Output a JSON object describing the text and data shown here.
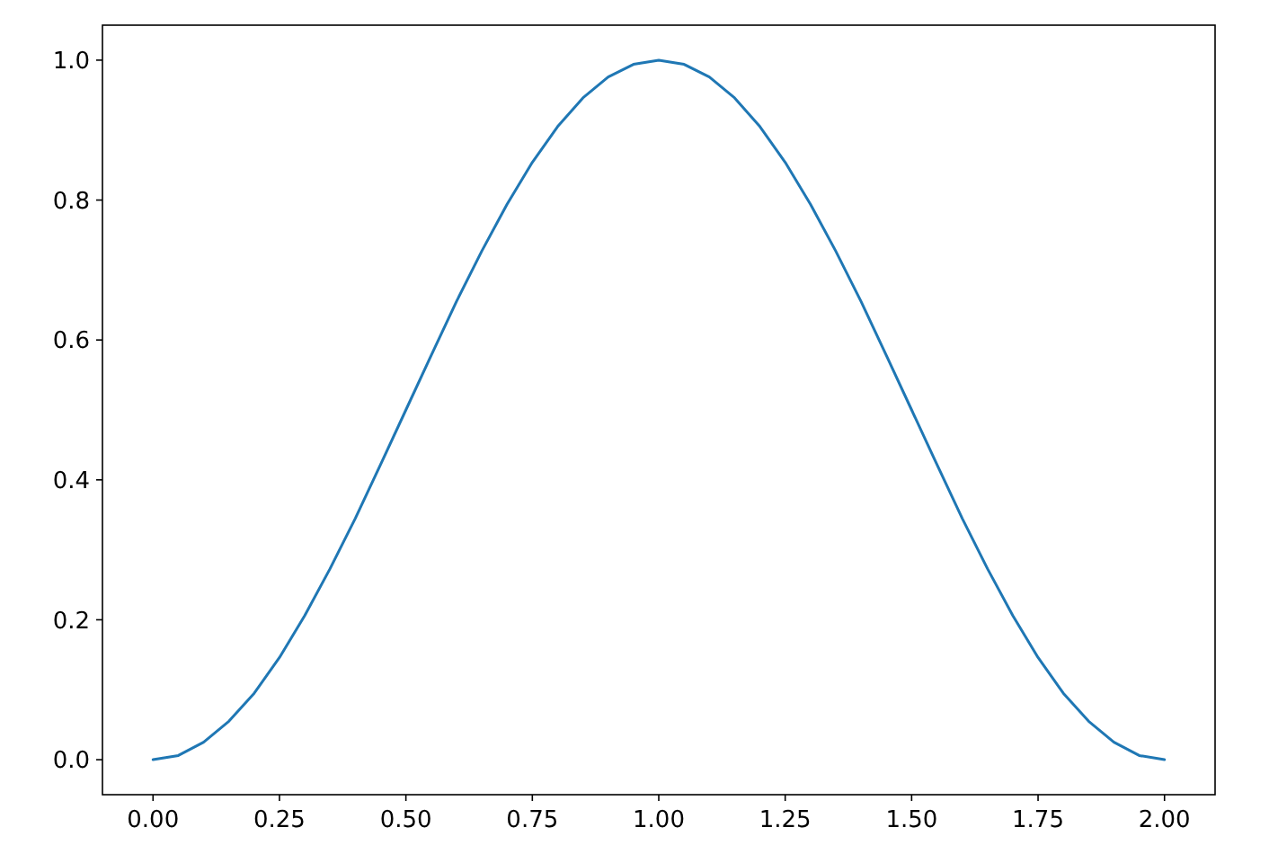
{
  "chart_data": {
    "type": "line",
    "x": [
      0,
      0.05,
      0.1,
      0.15,
      0.2,
      0.25,
      0.3,
      0.35,
      0.4,
      0.45,
      0.5,
      0.55,
      0.6,
      0.65,
      0.7,
      0.75,
      0.8,
      0.85,
      0.9,
      0.95,
      1,
      1.05,
      1.1,
      1.15,
      1.2,
      1.25,
      1.3,
      1.35,
      1.4,
      1.45,
      1.5,
      1.55,
      1.6,
      1.65,
      1.7,
      1.75,
      1.8,
      1.85,
      1.9,
      1.95,
      2
    ],
    "series": [
      {
        "color": "#1f77b4",
        "values": [
          0,
          0.006,
          0.025,
          0.055,
          0.095,
          0.146,
          0.206,
          0.273,
          0.345,
          0.422,
          0.5,
          0.578,
          0.655,
          0.727,
          0.794,
          0.854,
          0.905,
          0.946,
          0.976,
          0.994,
          1,
          0.994,
          0.976,
          0.946,
          0.905,
          0.854,
          0.794,
          0.727,
          0.655,
          0.578,
          0.5,
          0.422,
          0.345,
          0.273,
          0.206,
          0.146,
          0.095,
          0.055,
          0.025,
          0.006,
          0
        ]
      }
    ],
    "xlim": [
      -0.1,
      2.1
    ],
    "xticks": [
      {
        "value": 0,
        "label": "0.00"
      },
      {
        "value": 0.25,
        "label": "0.25"
      },
      {
        "value": 0.5,
        "label": "0.50"
      },
      {
        "value": 0.75,
        "label": "0.75"
      },
      {
        "value": 1,
        "label": "1.00"
      },
      {
        "value": 1.25,
        "label": "1.25"
      },
      {
        "value": 1.5,
        "label": "1.50"
      },
      {
        "value": 1.75,
        "label": "1.75"
      },
      {
        "value": 2,
        "label": "2.00"
      }
    ],
    "ylim": [
      -0.05,
      1.05
    ],
    "yticks": [
      {
        "value": 0,
        "label": "0.0"
      },
      {
        "value": 0.2,
        "label": "0.2"
      },
      {
        "value": 0.4,
        "label": "0.4"
      },
      {
        "value": 0.6,
        "label": "0.6"
      },
      {
        "value": 0.8,
        "label": "0.8"
      },
      {
        "value": 1,
        "label": "1.0"
      }
    ]
  }
}
